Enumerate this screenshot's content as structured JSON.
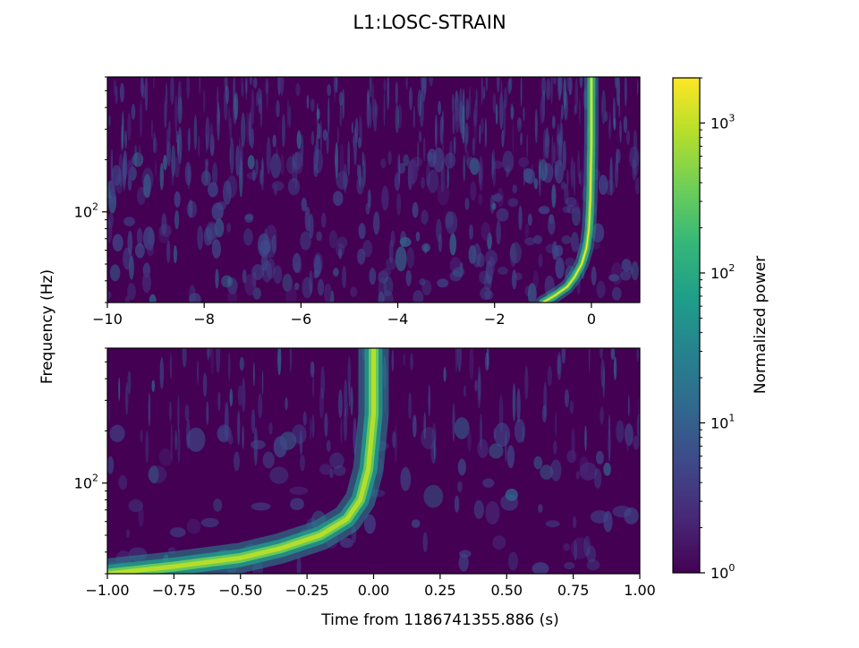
{
  "figure": {
    "title": "L1:LOSC-STRAIN",
    "ylabel": "Frequency (Hz)",
    "xlabel": "Time from 1186741355.886 (s)"
  },
  "colormap": {
    "name": "viridis",
    "stops": [
      "#440154",
      "#482878",
      "#3e4989",
      "#31688e",
      "#26828e",
      "#1f9e89",
      "#35b779",
      "#6ece58",
      "#b5de2b",
      "#fde725"
    ]
  },
  "chart_data": [
    {
      "type": "heatmap",
      "panel": "top",
      "xlim": [
        -10,
        1
      ],
      "xticks": [
        -10,
        -8,
        -6,
        -4,
        -2,
        0
      ],
      "xtick_labels": [
        "−10",
        "−8",
        "−6",
        "−4",
        "−2",
        "0"
      ],
      "yscale": "log",
      "ylim": [
        30,
        600
      ],
      "ytick_label": "10",
      "ytick_exp": "2",
      "chirp": {
        "merger_time": 0,
        "points": [
          [
            -1.0,
            30
          ],
          [
            -0.75,
            33
          ],
          [
            -0.5,
            37
          ],
          [
            -0.35,
            42
          ],
          [
            -0.2,
            50
          ],
          [
            -0.1,
            62
          ],
          [
            -0.05,
            80
          ],
          [
            -0.02,
            120
          ],
          [
            0.0,
            250
          ],
          [
            0.0,
            600
          ]
        ]
      }
    },
    {
      "type": "heatmap",
      "panel": "bottom",
      "xlim": [
        -1,
        1
      ],
      "xticks": [
        -1,
        -0.75,
        -0.5,
        -0.25,
        0,
        0.25,
        0.5,
        0.75,
        1
      ],
      "xtick_labels": [
        "−1.00",
        "−0.75",
        "−0.50",
        "−0.25",
        "0.00",
        "0.25",
        "0.50",
        "0.75",
        "1.00"
      ],
      "yscale": "log",
      "ylim": [
        30,
        600
      ],
      "ytick_label": "10",
      "ytick_exp": "2",
      "chirp": {
        "merger_time": 0,
        "points": [
          [
            -1.0,
            30
          ],
          [
            -0.75,
            33
          ],
          [
            -0.5,
            37
          ],
          [
            -0.35,
            42
          ],
          [
            -0.2,
            50
          ],
          [
            -0.1,
            62
          ],
          [
            -0.05,
            80
          ],
          [
            -0.02,
            120
          ],
          [
            0.0,
            250
          ],
          [
            0.0,
            600
          ]
        ]
      }
    }
  ],
  "colorbar": {
    "label": "Normalized power",
    "scale": "log",
    "range": [
      1,
      2000
    ],
    "ticks": [
      {
        "base": "10",
        "exp": "0"
      },
      {
        "base": "10",
        "exp": "1"
      },
      {
        "base": "10",
        "exp": "2"
      },
      {
        "base": "10",
        "exp": "3"
      }
    ]
  }
}
